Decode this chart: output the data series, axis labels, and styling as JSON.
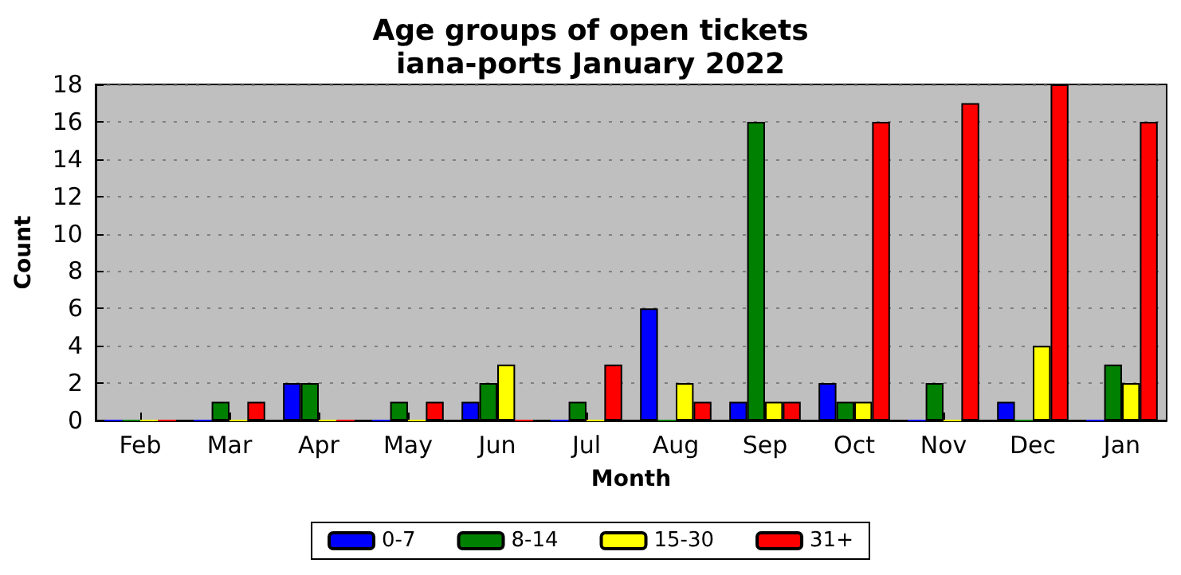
{
  "chart_data": {
    "type": "bar",
    "title": "Age groups of open tickets\niana-ports January 2022",
    "xlabel": "Month",
    "ylabel": "Count",
    "categories": [
      "Feb",
      "Mar",
      "Apr",
      "May",
      "Jun",
      "Jul",
      "Aug",
      "Sep",
      "Oct",
      "Nov",
      "Dec",
      "Jan"
    ],
    "series": [
      {
        "name": "0-7",
        "color": "#0000ff",
        "values": [
          0,
          0,
          2,
          0,
          1,
          0,
          6,
          1,
          2,
          0,
          1,
          0
        ]
      },
      {
        "name": "8-14",
        "color": "#008000",
        "values": [
          0,
          1,
          2,
          1,
          2,
          1,
          0,
          16,
          1,
          2,
          0,
          3
        ]
      },
      {
        "name": "15-30",
        "color": "#ffff00",
        "values": [
          0,
          0,
          0,
          0,
          3,
          0,
          2,
          1,
          1,
          0,
          4,
          2
        ]
      },
      {
        "name": "31+",
        "color": "#ff0000",
        "values": [
          0,
          1,
          0,
          1,
          0,
          3,
          1,
          1,
          16,
          17,
          18,
          16
        ]
      }
    ],
    "ylim": [
      0,
      18
    ],
    "yticks": [
      0,
      2,
      4,
      6,
      8,
      10,
      12,
      14,
      16,
      18
    ],
    "grid": "y",
    "legend": "bottom"
  }
}
